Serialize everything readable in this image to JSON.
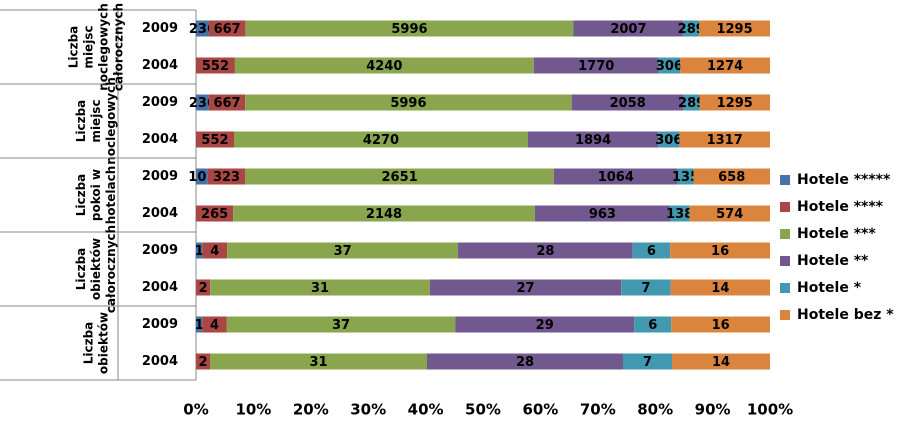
{
  "chart_data": {
    "type": "stacked-bar-100",
    "groups": [
      "Liczba miejsc noclegowych całorocznych",
      "Liczba miejsc noclegowych",
      "Liczba pokoi w hotelach",
      "Liczba obiektów całorocznych",
      "Liczba obiektów"
    ],
    "categories": [
      "2009",
      "2004",
      "2009",
      "2004",
      "2009",
      "2004",
      "2009",
      "2004",
      "2009",
      "2004"
    ],
    "series": [
      {
        "name": "Hotele *****",
        "color": "#4572a7",
        "values": [
          236,
          null,
          236,
          null,
          101,
          null,
          1,
          null,
          1,
          null
        ]
      },
      {
        "name": "Hotele ****",
        "color": "#aa4643",
        "values": [
          667,
          552,
          667,
          552,
          323,
          265,
          4,
          2,
          4,
          2
        ]
      },
      {
        "name": "Hotele ***",
        "color": "#89a54e",
        "values": [
          5996,
          4240,
          5996,
          4270,
          2651,
          2148,
          37,
          31,
          37,
          31
        ]
      },
      {
        "name": "Hotele **",
        "color": "#71588f",
        "values": [
          2007,
          1770,
          2058,
          1894,
          1064,
          963,
          28,
          27,
          29,
          28
        ]
      },
      {
        "name": "Hotele *",
        "color": "#4198af",
        "values": [
          289,
          306,
          289,
          306,
          135,
          138,
          6,
          7,
          6,
          7
        ]
      },
      {
        "name": "Hotele bez *",
        "color": "#db843d",
        "values": [
          1295,
          1274,
          1295,
          1317,
          658,
          574,
          16,
          14,
          16,
          14
        ]
      }
    ],
    "xlim": [
      0,
      100
    ],
    "xticks": [
      {
        "value": 0,
        "label": "0%"
      },
      {
        "value": 10,
        "label": "10%"
      },
      {
        "value": 20,
        "label": "20%"
      },
      {
        "value": 30,
        "label": "30%"
      },
      {
        "value": 40,
        "label": "40%"
      },
      {
        "value": 50,
        "label": "50%"
      },
      {
        "value": 60,
        "label": "60%"
      },
      {
        "value": 70,
        "label": "70%"
      },
      {
        "value": 80,
        "label": "80%"
      },
      {
        "value": 90,
        "label": "90%"
      },
      {
        "value": 100,
        "label": "100%"
      }
    ],
    "legend": "right"
  }
}
